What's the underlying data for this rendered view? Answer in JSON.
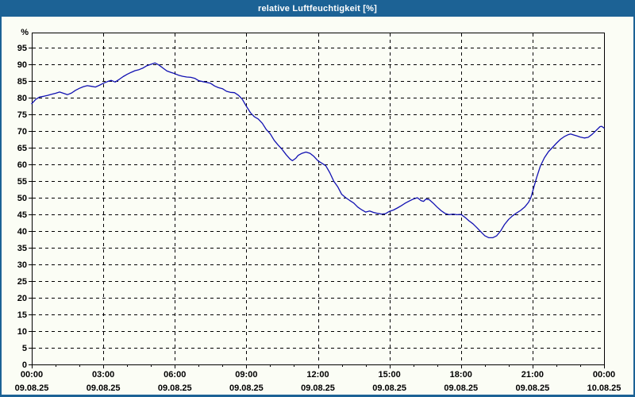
{
  "window": {
    "title": "relative Luftfeuchtigkeit [%]",
    "titlebar_color": "#1c6295",
    "border_color": "#1c6295",
    "background_color": "#fbfdf5"
  },
  "chart_data": {
    "type": "line",
    "title": "relative Luftfeuchtigkeit [%]",
    "ylabel": "%",
    "y_unit_label": "%",
    "ylim": [
      0,
      100
    ],
    "y_tick_step": 5,
    "y_tick_labels": [
      "0",
      "5",
      "10",
      "15",
      "20",
      "25",
      "30",
      "35",
      "40",
      "45",
      "50",
      "55",
      "60",
      "65",
      "70",
      "75",
      "80",
      "85",
      "90",
      "95"
    ],
    "grid": "dashed",
    "legend": "none",
    "line_color": "#1111b2",
    "axis_color": "#000000",
    "x_range_hours": [
      0,
      24
    ],
    "x_minor_tick_every_hours": 1,
    "x_major_ticks": [
      {
        "hour": 0,
        "time": "00:00",
        "date": "09.08.25"
      },
      {
        "hour": 3,
        "time": "03:00",
        "date": "09.08.25"
      },
      {
        "hour": 6,
        "time": "06:00",
        "date": "09.08.25"
      },
      {
        "hour": 9,
        "time": "09:00",
        "date": "09.08.25"
      },
      {
        "hour": 12,
        "time": "12:00",
        "date": "09.08.25"
      },
      {
        "hour": 15,
        "time": "15:00",
        "date": "09.08.25"
      },
      {
        "hour": 18,
        "time": "18:00",
        "date": "09.08.25"
      },
      {
        "hour": 21,
        "time": "21:00",
        "date": "09.08.25"
      },
      {
        "hour": 24,
        "time": "00:00",
        "date": "10.08.25"
      }
    ],
    "series": [
      {
        "name": "relative Luftfeuchtigkeit",
        "points": [
          [
            0.0,
            78.2
          ],
          [
            0.17,
            79.5
          ],
          [
            0.33,
            80.2
          ],
          [
            0.5,
            80.4
          ],
          [
            0.67,
            80.7
          ],
          [
            0.83,
            81.0
          ],
          [
            1.0,
            81.3
          ],
          [
            1.17,
            81.7
          ],
          [
            1.33,
            81.3
          ],
          [
            1.5,
            80.9
          ],
          [
            1.67,
            81.4
          ],
          [
            1.83,
            82.2
          ],
          [
            2.0,
            82.8
          ],
          [
            2.17,
            83.3
          ],
          [
            2.33,
            83.6
          ],
          [
            2.5,
            83.4
          ],
          [
            2.67,
            83.2
          ],
          [
            2.83,
            83.7
          ],
          [
            3.0,
            84.3
          ],
          [
            3.17,
            84.8
          ],
          [
            3.33,
            85.2
          ],
          [
            3.5,
            84.7
          ],
          [
            3.67,
            85.5
          ],
          [
            3.83,
            86.3
          ],
          [
            4.0,
            87.0
          ],
          [
            4.17,
            87.6
          ],
          [
            4.33,
            88.1
          ],
          [
            4.5,
            88.4
          ],
          [
            4.67,
            88.9
          ],
          [
            4.83,
            89.6
          ],
          [
            5.0,
            90.0
          ],
          [
            5.17,
            90.4
          ],
          [
            5.33,
            89.8
          ],
          [
            5.5,
            88.9
          ],
          [
            5.67,
            88.0
          ],
          [
            5.83,
            87.6
          ],
          [
            6.0,
            87.2
          ],
          [
            6.17,
            86.7
          ],
          [
            6.33,
            86.4
          ],
          [
            6.5,
            86.2
          ],
          [
            6.67,
            86.1
          ],
          [
            6.83,
            85.8
          ],
          [
            7.0,
            85.1
          ],
          [
            7.17,
            84.8
          ],
          [
            7.33,
            84.6
          ],
          [
            7.5,
            84.3
          ],
          [
            7.67,
            83.5
          ],
          [
            7.83,
            83.0
          ],
          [
            8.0,
            82.7
          ],
          [
            8.17,
            81.9
          ],
          [
            8.33,
            81.6
          ],
          [
            8.5,
            81.5
          ],
          [
            8.67,
            80.7
          ],
          [
            8.83,
            79.5
          ],
          [
            9.0,
            77.4
          ],
          [
            9.17,
            75.5
          ],
          [
            9.33,
            74.3
          ],
          [
            9.5,
            73.6
          ],
          [
            9.67,
            72.3
          ],
          [
            9.83,
            70.5
          ],
          [
            10.0,
            69.2
          ],
          [
            10.17,
            67.2
          ],
          [
            10.33,
            65.8
          ],
          [
            10.5,
            64.5
          ],
          [
            10.67,
            62.9
          ],
          [
            10.83,
            61.6
          ],
          [
            10.93,
            61.1
          ],
          [
            11.07,
            61.8
          ],
          [
            11.17,
            62.7
          ],
          [
            11.33,
            63.3
          ],
          [
            11.5,
            63.7
          ],
          [
            11.67,
            63.3
          ],
          [
            11.83,
            62.4
          ],
          [
            12.0,
            61.1
          ],
          [
            12.17,
            60.3
          ],
          [
            12.33,
            59.6
          ],
          [
            12.5,
            57.5
          ],
          [
            12.67,
            54.9
          ],
          [
            12.83,
            53.3
          ],
          [
            13.0,
            51.0
          ],
          [
            13.17,
            50.0
          ],
          [
            13.33,
            49.2
          ],
          [
            13.5,
            48.4
          ],
          [
            13.67,
            47.2
          ],
          [
            13.83,
            46.4
          ],
          [
            14.0,
            45.7
          ],
          [
            14.17,
            46.0
          ],
          [
            14.33,
            45.6
          ],
          [
            14.5,
            45.3
          ],
          [
            14.67,
            45.1
          ],
          [
            14.83,
            45.2
          ],
          [
            15.0,
            45.9
          ],
          [
            15.17,
            46.3
          ],
          [
            15.33,
            46.9
          ],
          [
            15.5,
            47.6
          ],
          [
            15.67,
            48.4
          ],
          [
            15.83,
            49.0
          ],
          [
            16.0,
            49.6
          ],
          [
            16.17,
            50.0
          ],
          [
            16.33,
            49.1
          ],
          [
            16.43,
            48.9
          ],
          [
            16.53,
            49.6
          ],
          [
            16.67,
            49.4
          ],
          [
            16.83,
            48.4
          ],
          [
            17.0,
            47.2
          ],
          [
            17.17,
            46.1
          ],
          [
            17.33,
            45.3
          ],
          [
            17.5,
            44.9
          ],
          [
            17.67,
            45.1
          ],
          [
            17.83,
            44.9
          ],
          [
            18.0,
            45.0
          ],
          [
            18.17,
            44.1
          ],
          [
            18.33,
            43.1
          ],
          [
            18.5,
            42.2
          ],
          [
            18.67,
            41.0
          ],
          [
            18.83,
            39.8
          ],
          [
            19.0,
            38.6
          ],
          [
            19.17,
            38.0
          ],
          [
            19.33,
            38.0
          ],
          [
            19.5,
            38.6
          ],
          [
            19.67,
            40.1
          ],
          [
            19.83,
            42.0
          ],
          [
            20.0,
            43.5
          ],
          [
            20.17,
            44.6
          ],
          [
            20.33,
            45.4
          ],
          [
            20.5,
            46.2
          ],
          [
            20.67,
            47.2
          ],
          [
            20.83,
            48.6
          ],
          [
            20.93,
            50.0
          ],
          [
            21.07,
            53.5
          ],
          [
            21.17,
            56.0
          ],
          [
            21.33,
            59.5
          ],
          [
            21.5,
            62.0
          ],
          [
            21.67,
            63.8
          ],
          [
            21.83,
            65.0
          ],
          [
            22.0,
            66.3
          ],
          [
            22.17,
            67.5
          ],
          [
            22.33,
            68.3
          ],
          [
            22.5,
            68.9
          ],
          [
            22.6,
            69.1
          ],
          [
            22.73,
            68.8
          ],
          [
            22.87,
            68.5
          ],
          [
            23.0,
            68.2
          ],
          [
            23.17,
            67.9
          ],
          [
            23.33,
            68.1
          ],
          [
            23.5,
            69.0
          ],
          [
            23.67,
            70.2
          ],
          [
            23.83,
            71.3
          ],
          [
            23.9,
            71.4
          ],
          [
            24.0,
            70.9
          ]
        ]
      }
    ]
  }
}
